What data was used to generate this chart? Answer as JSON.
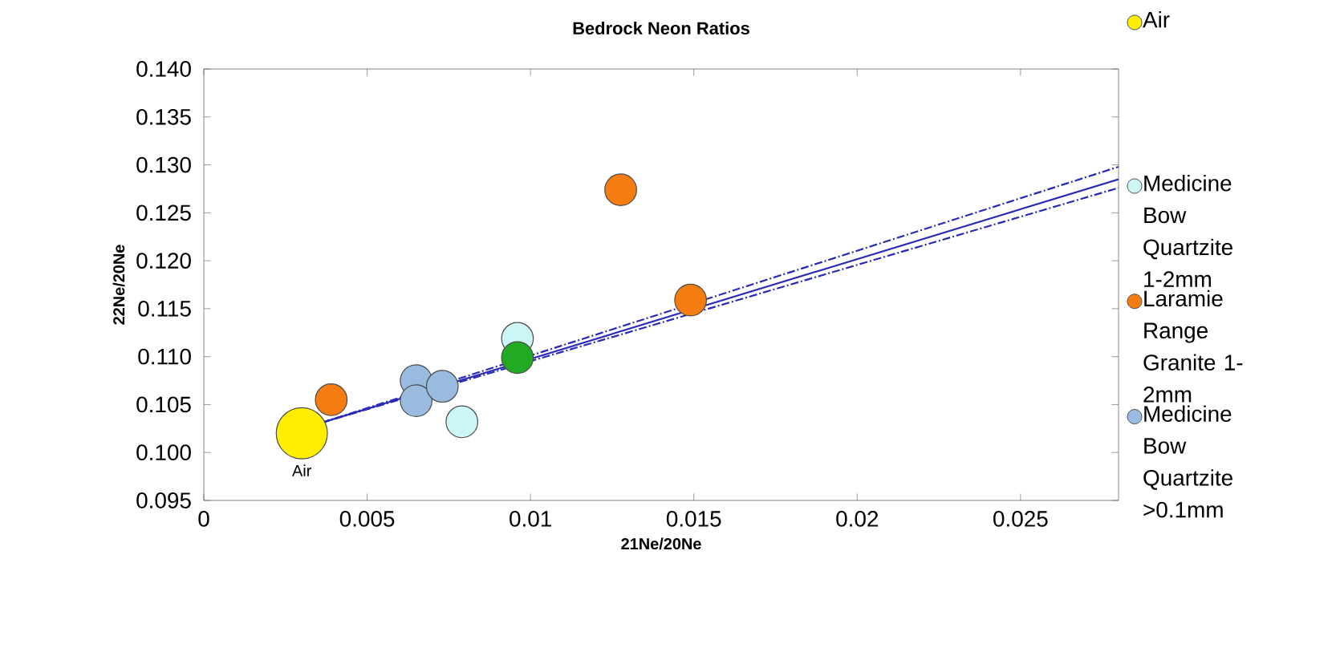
{
  "chart_data": {
    "type": "bubble",
    "title": "Bedrock Neon Ratios",
    "xlabel": "21Ne/20Ne",
    "ylabel": "22Ne/20Ne",
    "xlim": [
      0,
      0.028
    ],
    "xticks": [
      0,
      0.005,
      0.01,
      0.015,
      0.02,
      0.025
    ],
    "ylim": [
      0.095,
      0.14
    ],
    "yticks": [
      {
        "value": 0.095,
        "label": "0.095"
      },
      {
        "value": 0.1,
        "label": "0.100"
      },
      {
        "value": 0.105,
        "label": "0.105"
      },
      {
        "value": 0.11,
        "label": "0.110"
      },
      {
        "value": 0.115,
        "label": "0.115"
      },
      {
        "value": 0.12,
        "label": "0.120"
      },
      {
        "value": 0.125,
        "label": "0.125"
      },
      {
        "value": 0.13,
        "label": "0.130"
      },
      {
        "value": 0.135,
        "label": "0.135"
      },
      {
        "value": 0.14,
        "label": "0.140"
      }
    ],
    "grid": false,
    "legend": "right",
    "marker": "circle",
    "annotations": [
      {
        "text": "Air",
        "x": 0.003,
        "y": 0.102
      }
    ],
    "series": [
      {
        "type": "line",
        "color": "#2a2ab8",
        "line_style": "dashed",
        "marker": "none",
        "x": [
          0.0036,
          0.028
        ],
        "values": [
          0.1031,
          0.1298
        ]
      },
      {
        "type": "line",
        "color": "#2a2ab8",
        "line_style": "dashed",
        "marker": "none",
        "x": [
          0.0036,
          0.028
        ],
        "values": [
          0.1031,
          0.1276
        ]
      },
      {
        "type": "line",
        "color": "#2a2ab8",
        "line_style": "solid",
        "marker": "none",
        "x": [
          0.0036,
          0.028
        ],
        "values": [
          0.1031,
          0.1285
        ]
      },
      {
        "name": "Air",
        "color": "#ffee00",
        "x": [
          0.003
        ],
        "values": [
          0.102
        ],
        "sizes": [
          1
        ]
      },
      {
        "name": "Medicine Bow Quartzite 1-2mm",
        "color": "#ccf5f5",
        "x": [
          0.0079,
          0.0096
        ],
        "values": [
          0.1032,
          0.1119
        ],
        "sizes": [
          0.62,
          0.62
        ]
      },
      {
        "name": "Laramie Range Granite 1-2mm",
        "color": "#f47c10",
        "x": [
          0.0039,
          0.01276,
          0.0149
        ],
        "values": [
          0.1055,
          0.1274,
          0.1159
        ],
        "sizes": [
          0.62,
          0.62,
          0.62
        ]
      },
      {
        "name": "Medicine Bow Quartzite >0.1mm",
        "color": "#99bbe0",
        "x": [
          0.0065,
          0.0065,
          0.0073
        ],
        "values": [
          0.1075,
          0.1054,
          0.1069
        ],
        "sizes": [
          0.62,
          0.62,
          0.62
        ]
      },
      {
        "color": "#22aa22",
        "x": [
          0.0096
        ],
        "values": [
          0.1099
        ],
        "sizes": [
          0.62
        ]
      }
    ]
  }
}
